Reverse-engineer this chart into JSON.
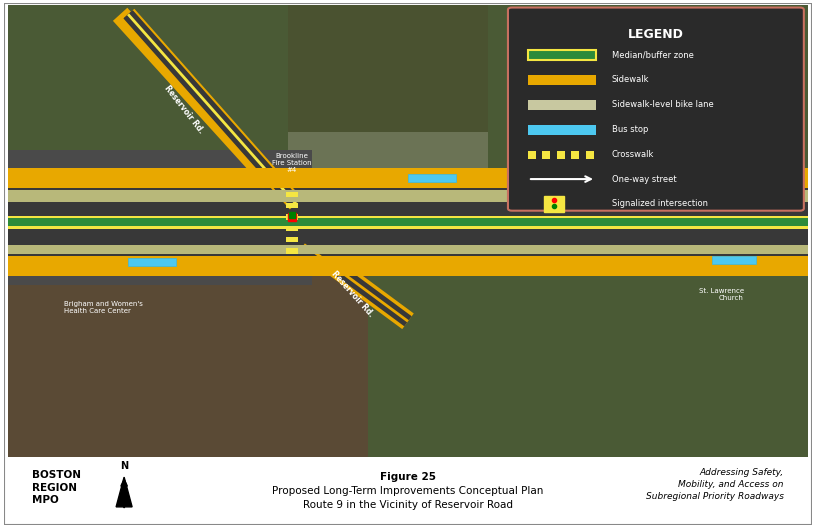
{
  "title_line1": "Figure 25",
  "title_line2": "Proposed Long-Term Improvements Conceptual Plan",
  "title_line3": "Route 9 in the Vicinity of Reservoir Road",
  "footer_left": "BOSTON\nREGION\nMPO",
  "footer_right": "Addressing Safety,\nMobility, and Access on\nSubregional Priority Roadways",
  "legend_title": "LEGEND",
  "legend_items": [
    {
      "label": "Median/buffer zone",
      "type": "rect",
      "color": "#2e8b3a",
      "border": "#f5e642"
    },
    {
      "label": "Sidewalk",
      "type": "rect",
      "color": "#e8a800"
    },
    {
      "label": "Sidewalk-level bike lane",
      "type": "rect",
      "color": "#c8c8a0"
    },
    {
      "label": "Bus stop",
      "type": "rect",
      "color": "#4dc8f0"
    },
    {
      "label": "Crosswalk",
      "type": "hatch",
      "color": "#f5e642"
    },
    {
      "label": "One-way street",
      "type": "arrow",
      "color": "#ffffff"
    },
    {
      "label": "Signalized intersection",
      "type": "signal",
      "color": "#f5e642"
    }
  ],
  "legend_bg": "#2a2a2a",
  "legend_border": "#c87060",
  "map_border_color": "#888888",
  "footer_bg": "#ffffff",
  "footer_border": "#333333",
  "outer_bg": "#ffffff",
  "fig_bg": "#f0f0f0",
  "map_bg": "#5a6a4a",
  "map_aspect": [
    816,
    450
  ]
}
